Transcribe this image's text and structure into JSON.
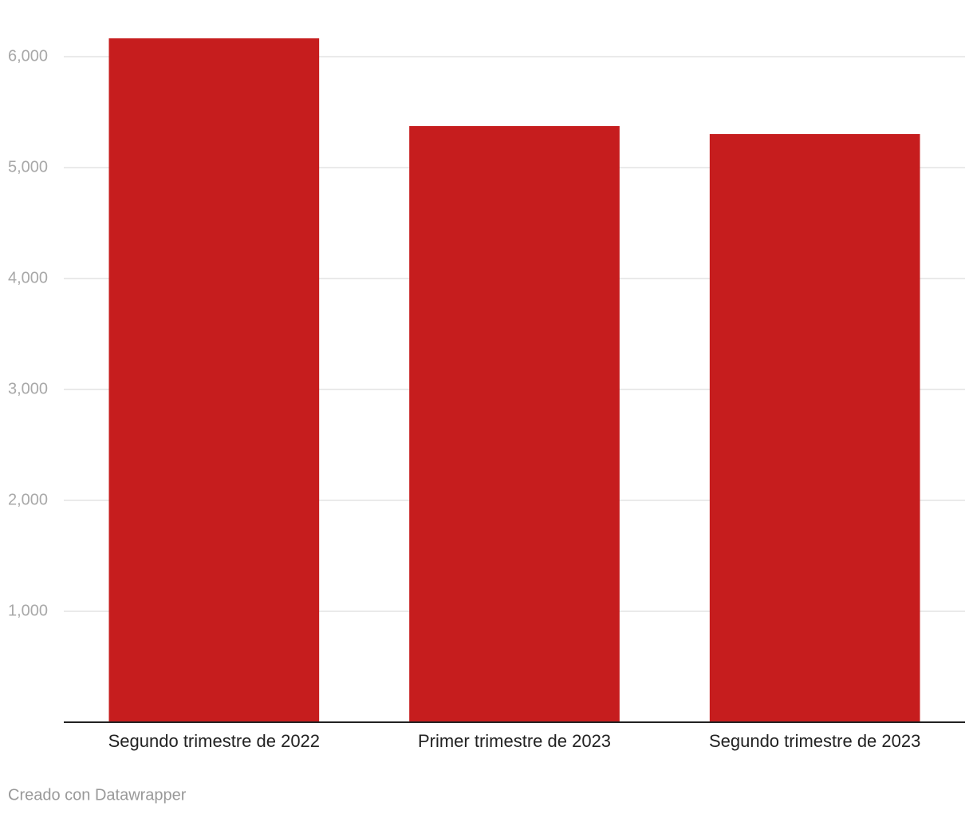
{
  "chart_data": {
    "type": "bar",
    "categories": [
      "Segundo trimestre de 2022",
      "Primer trimestre de 2023",
      "Segundo trimestre de 2023"
    ],
    "values": [
      6165,
      5374,
      5302
    ],
    "color": "#c61d1e",
    "ylim": [
      0,
      6200
    ],
    "yticks": [
      {
        "value": 1000,
        "label": "1,000"
      },
      {
        "value": 2000,
        "label": "2,000"
      },
      {
        "value": 3000,
        "label": "3,000"
      },
      {
        "value": 4000,
        "label": "4,000"
      },
      {
        "value": 5000,
        "label": "5,000"
      },
      {
        "value": 6000,
        "label": "6,000"
      }
    ],
    "grid": true,
    "credit": "Creado con Datawrapper"
  }
}
